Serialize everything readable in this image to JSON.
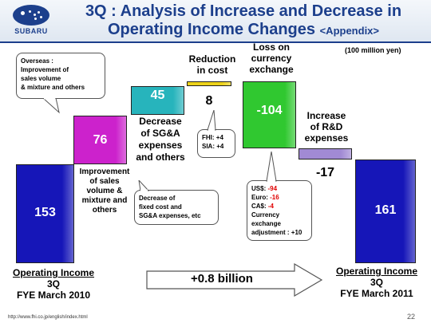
{
  "header": {
    "logo_text": "SUBARU",
    "title_line1": "3Q : Analysis of Increase and Decrease in",
    "title_line2": "Operating Income Changes",
    "title_appendix": "<Appendix>"
  },
  "unit": "(100 million yen)",
  "chart_data": {
    "type": "waterfall",
    "categories": [
      "Operating Income 3Q FYE March 2010",
      "Improvement of sales volume & mixture and others",
      "Decrease of SG&A expenses and others",
      "Reduction in cost",
      "Loss on currency exchange",
      "Increase of R&D expenses",
      "Operating Income 3Q FYE March 2011"
    ],
    "values": [
      153,
      76,
      45,
      8,
      -104,
      -17,
      161
    ],
    "value_labels": [
      "153",
      "76",
      "45",
      "8",
      "-104",
      "-17",
      "161"
    ],
    "colors": [
      "#1616b8",
      "#cc22cc",
      "#27b4bc",
      "#ecd21a",
      "#30c830",
      "#a18ad4",
      "#1616b8"
    ]
  },
  "labels": {
    "start_title": "Operating Income",
    "start_sub1": "3Q",
    "start_sub2": "FYE March 2010",
    "improvement": "Improvement\nof sales\nvolume &\nmixture and\nothers",
    "sga": "Decrease\nof SG&A\nexpenses\nand others",
    "reduction": "Reduction\nin cost",
    "loss": "Loss on\ncurrency\nexchange",
    "rd": "Increase\nof R&D\nexpenses",
    "end_title": "Operating Income",
    "end_sub1": "3Q",
    "end_sub2": "FYE March 2011",
    "change": "+0.8 billion"
  },
  "callouts": {
    "overseas": "Overseas :\nImprovement of\nsales volume\n& mixture and others",
    "fixed_cost": "Decrease of\nfixed cost and\nSG&A expenses, etc",
    "fhi": "FHI: +4",
    "sia": "SIA: +4",
    "us_label": "US$: ",
    "us_val": "-94",
    "euro_label": "Euro: ",
    "euro_val": "-16",
    "ca_label": "CA$: ",
    "ca_val": "-4",
    "adjust": "Currency\nexchange\nadjustment : +10"
  },
  "footer": {
    "url": "http://www.fhi.co.jp/english/index.html",
    "page": "22"
  }
}
